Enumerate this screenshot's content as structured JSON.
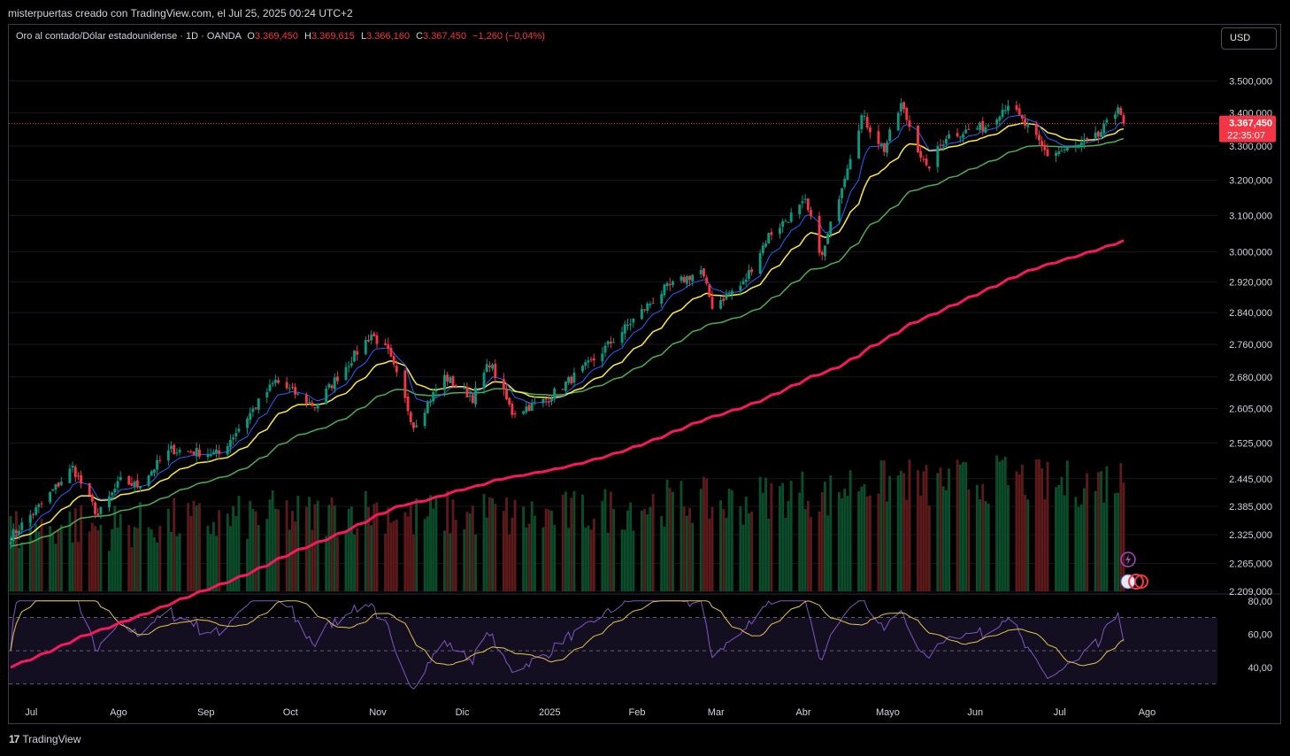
{
  "caption": "misterpuertas creado con TradingView.com, el Jul 25, 2025 00:24 UTC+2",
  "legend": {
    "symbol": "Oro al contado/Dólar estadounidense · 1D · OANDA",
    "open_label": "O",
    "open": "3.369,450",
    "high_label": "H",
    "high": "3.369,615",
    "low_label": "L",
    "low": "3.366,160",
    "close_label": "C",
    "close": "3.367,450",
    "change": "−1,260 (−0,04%)"
  },
  "currency_button": "USD",
  "price_tag": {
    "price": "3.367,450",
    "countdown": "22:35:07"
  },
  "footer": {
    "logo_mark": "17",
    "logo_text": "TradingView"
  },
  "colors": {
    "up": "#089981",
    "down": "#f23645",
    "ema_fast": "#2962ff",
    "ema_mid": "#ffeb3b",
    "ema_slow": "#4caf50",
    "ema_long": "#f7195e",
    "rsi": "#7e57c2",
    "rsi_ma": "#e2c54a"
  },
  "chart_data": [
    {
      "type": "candlestick",
      "title": "Oro al contado/Dólar estadounidense · 1D · OANDA",
      "price_axis_ticks": [
        "3.500,000",
        "3.400,000",
        "3.300,000",
        "3.200,000",
        "3.100,000",
        "3.000,000",
        "2.920,000",
        "2.840,000",
        "2.760,000",
        "2.680,000",
        "2.605,000",
        "2.525,000",
        "2.445,000",
        "2.385,000",
        "2.325,000",
        "2.265,000",
        "2.209,000"
      ],
      "price_axis_values": [
        3500,
        3400,
        3300,
        3200,
        3100,
        3000,
        2920,
        2840,
        2760,
        2680,
        2605,
        2525,
        2445,
        2385,
        2325,
        2265,
        2209
      ],
      "log_scale": true,
      "ylim": [
        2209,
        3560
      ],
      "time_axis_labels": [
        "Jul",
        "Ago",
        "Sep",
        "Oct",
        "Nov",
        "Dic",
        "2025",
        "Feb",
        "Mar",
        "Abr",
        "Mayo",
        "Jun",
        "Jul",
        "Ago"
      ],
      "close_anchors": [
        [
          "2024-06-24",
          2320
        ],
        [
          "2024-07-05",
          2390
        ],
        [
          "2024-07-16",
          2470
        ],
        [
          "2024-07-25",
          2365
        ],
        [
          "2024-08-02",
          2440
        ],
        [
          "2024-08-08",
          2430
        ],
        [
          "2024-08-20",
          2510
        ],
        [
          "2024-09-06",
          2500
        ],
        [
          "2024-09-26",
          2670
        ],
        [
          "2024-10-10",
          2610
        ],
        [
          "2024-10-30",
          2785
        ],
        [
          "2024-11-05",
          2740
        ],
        [
          "2024-11-14",
          2565
        ],
        [
          "2024-11-25",
          2680
        ],
        [
          "2024-12-05",
          2630
        ],
        [
          "2024-12-11",
          2715
        ],
        [
          "2024-12-19",
          2595
        ],
        [
          "2024-12-31",
          2625
        ],
        [
          "2025-01-16",
          2715
        ],
        [
          "2025-02-11",
          2900
        ],
        [
          "2025-02-24",
          2950
        ],
        [
          "2025-02-28",
          2858
        ],
        [
          "2025-03-11",
          2915
        ],
        [
          "2025-03-20",
          3045
        ],
        [
          "2025-04-02",
          3135
        ],
        [
          "2025-04-08",
          2985
        ],
        [
          "2025-04-22",
          3390
        ],
        [
          "2025-04-30",
          3290
        ],
        [
          "2025-05-06",
          3425
        ],
        [
          "2025-05-15",
          3230
        ],
        [
          "2025-05-22",
          3330
        ],
        [
          "2025-06-05",
          3360
        ],
        [
          "2025-06-13",
          3430
        ],
        [
          "2025-06-27",
          3275
        ],
        [
          "2025-07-08",
          3300
        ],
        [
          "2025-07-15",
          3330
        ],
        [
          "2025-07-21",
          3400
        ],
        [
          "2025-07-22",
          3430
        ],
        [
          "2025-07-24",
          3367.45
        ]
      ],
      "last_close": 3367.45,
      "indicators": [
        "EMA fast (blue)",
        "EMA mid (yellow)",
        "EMA slow (green)",
        "EMA long (red)",
        "Volume"
      ]
    },
    {
      "type": "line",
      "title": "RSI",
      "axis_ticks": [
        "80,00",
        "60,00",
        "40,00"
      ],
      "axis_values": [
        80,
        60,
        40
      ],
      "band": [
        30,
        70
      ],
      "midline": 50,
      "ylim": [
        25,
        82
      ]
    }
  ]
}
